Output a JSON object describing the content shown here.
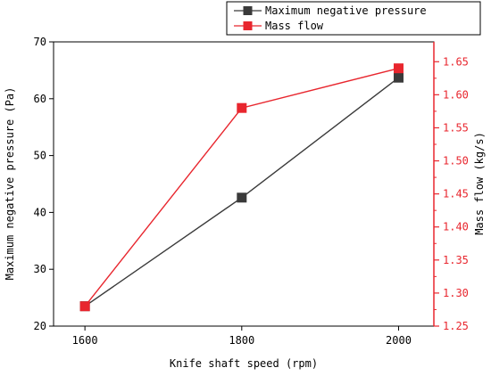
{
  "chart_data": {
    "type": "line",
    "title": "",
    "xlabel": "Knife shaft speed (rpm)",
    "x": [
      1600,
      1800,
      2000
    ],
    "x_ticks": [
      "1600",
      "1800",
      "2000"
    ],
    "x_range": [
      1560,
      2045
    ],
    "y_left": {
      "label": "Maximum negative pressure (Pa)",
      "range": [
        20,
        70
      ],
      "ticks": [
        20,
        30,
        40,
        50,
        60,
        70
      ],
      "color": "#000000"
    },
    "y_right": {
      "label": "Mass flow (kg/s)",
      "range": [
        1.25,
        1.68
      ],
      "ticks": [
        1.25,
        1.3,
        1.35,
        1.4,
        1.45,
        1.5,
        1.55,
        1.6,
        1.65
      ],
      "color": "#e8262e"
    },
    "series": [
      {
        "name": "Maximum negative pressure",
        "axis": "left",
        "color": "#3a3a3a",
        "values": [
          23.5,
          42.6,
          63.7
        ]
      },
      {
        "name": "Mass flow",
        "axis": "right",
        "color": "#e8262e",
        "values": [
          1.28,
          1.58,
          1.64
        ]
      }
    ],
    "legend_position": "top-right",
    "grid": false
  }
}
